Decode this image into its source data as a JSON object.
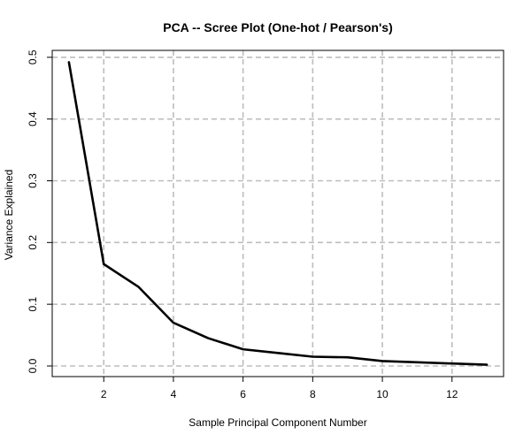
{
  "chart_data": {
    "type": "line",
    "title": "PCA -- Scree Plot (One-hot / Pearson's)",
    "xlabel": "Sample Principal Component Number",
    "ylabel": "Variance Explained",
    "xlim": [
      0.52,
      13.48
    ],
    "ylim": [
      -0.0172,
      0.5112
    ],
    "x_ticks": [
      2,
      4,
      6,
      8,
      10,
      12
    ],
    "x_tick_labels": [
      "2",
      "4",
      "6",
      "8",
      "10",
      "12"
    ],
    "y_ticks": [
      0.0,
      0.1,
      0.2,
      0.3,
      0.4,
      0.5
    ],
    "y_tick_labels": [
      "0.0",
      "0.1",
      "0.2",
      "0.3",
      "0.4",
      "0.5"
    ],
    "grid": true,
    "series": [
      {
        "x": [
          1,
          2,
          3,
          4,
          5,
          6,
          7,
          8,
          9,
          10,
          11,
          12,
          13
        ],
        "values": [
          0.492,
          0.165,
          0.128,
          0.07,
          0.045,
          0.027,
          0.021,
          0.015,
          0.014,
          0.008,
          0.006,
          0.004,
          0.002
        ],
        "color": "#000000"
      }
    ]
  },
  "colors": {
    "grid": "#bdbdbd",
    "line": "#000000",
    "background": "#ffffff"
  }
}
